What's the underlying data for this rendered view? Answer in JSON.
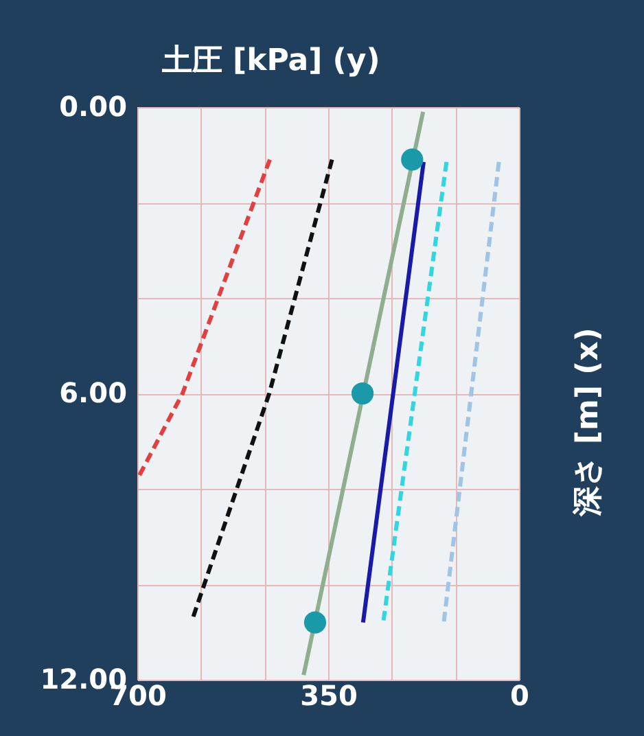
{
  "chart_data": {
    "type": "line",
    "xlabel": "土圧 [kPa] (y)",
    "ylabel": "深さ [m] (x)",
    "xlim": [
      700,
      0
    ],
    "ylim": [
      12,
      0
    ],
    "xticks": [
      700,
      {
        "value": 583.33,
        "label": null
      },
      {
        "value": 466.67,
        "label": null
      },
      350,
      {
        "value": 233.33,
        "label": null
      },
      {
        "value": 116.67,
        "label": null
      },
      0
    ],
    "yticks": [
      {
        "value": 0,
        "label": "0.00"
      },
      {
        "value": 2,
        "label": null
      },
      {
        "value": 4,
        "label": null
      },
      {
        "value": 6,
        "label": "6.00"
      },
      {
        "value": 8,
        "label": null
      },
      {
        "value": 10,
        "label": null
      },
      {
        "value": 12,
        "label": "12.00"
      }
    ],
    "grid": true,
    "series": [
      {
        "color": "#e04040",
        "line_style": "dashed",
        "marker": "none",
        "x": [
          457,
          617,
          700
        ],
        "values": [
          1.1,
          6.0,
          7.8
        ]
      },
      {
        "color": "#111111",
        "line_style": "dashed",
        "marker": "none",
        "x": [
          343,
          458,
          598
        ],
        "values": [
          1.1,
          6.0,
          10.7
        ]
      },
      {
        "color": "#8fae8f",
        "line_style": "solid",
        "marker": "none",
        "x": [
          176,
          395
        ],
        "values": [
          0.1,
          11.9
        ]
      },
      {
        "color": "#1a1aa8",
        "line_style": "solid",
        "marker": "none",
        "x": [
          175,
          286
        ],
        "values": [
          1.15,
          10.8
        ]
      },
      {
        "color": "#33d6e0",
        "line_style": "dashed",
        "marker": "none",
        "x": [
          133,
          249
        ],
        "values": [
          1.15,
          10.8
        ]
      },
      {
        "color": "#9fc4e6",
        "line_style": "dashed",
        "marker": "none",
        "x": [
          37,
          138
        ],
        "values": [
          1.15,
          10.8
        ]
      },
      {
        "type": "scatter",
        "color": "#1a9aa8",
        "marker": "circle",
        "x": [
          196,
          287,
          374
        ],
        "values": [
          1.1,
          6.0,
          10.8
        ]
      }
    ]
  }
}
